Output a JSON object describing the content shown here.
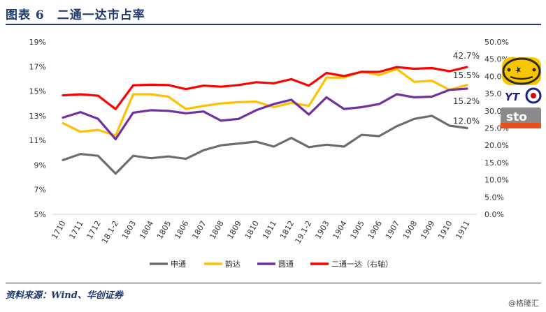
{
  "header": {
    "title": "图表 6　二通一达市占率"
  },
  "footer": {
    "source": "资料来源：Wind、华创证券",
    "watermark": "@格隆汇"
  },
  "chart_data": {
    "type": "line",
    "categories": [
      "1710",
      "1711",
      "1712",
      "18.1-2",
      "1803",
      "1804",
      "1805",
      "1806",
      "1807",
      "1808",
      "1809",
      "1810",
      "1811",
      "1812",
      "19.1-2",
      "1903",
      "1904",
      "1905",
      "1906",
      "1907",
      "1908",
      "1909",
      "1910",
      "1911"
    ],
    "y_left": {
      "ylim": [
        5,
        19
      ],
      "ticks": [
        "5%",
        "7%",
        "9%",
        "11%",
        "13%",
        "15%",
        "17%",
        "19%"
      ]
    },
    "y_right": {
      "ylim": [
        0,
        50
      ],
      "ticks": [
        "0.0%",
        "5.0%",
        "10.0%",
        "15.0%",
        "20.0%",
        "25.0%",
        "30.0%",
        "35.0%",
        "40.0%",
        "45.0%",
        "50.0%"
      ]
    },
    "series": [
      {
        "name": "申通",
        "axis": "left",
        "color": "#6d6d6d",
        "values": [
          9.4,
          9.9,
          9.75,
          8.3,
          9.75,
          9.55,
          9.7,
          9.5,
          10.2,
          10.6,
          10.75,
          10.9,
          10.5,
          11.2,
          10.45,
          10.65,
          10.5,
          11.45,
          11.35,
          12.15,
          12.75,
          13.0,
          12.2,
          12.0
        ]
      },
      {
        "name": "韵达",
        "axis": "left",
        "color": "#ffc000",
        "values": [
          12.4,
          11.7,
          11.85,
          11.4,
          14.75,
          14.75,
          14.55,
          13.55,
          13.8,
          14.0,
          14.1,
          14.15,
          13.7,
          14.05,
          13.8,
          16.1,
          16.1,
          16.6,
          16.3,
          16.8,
          15.75,
          15.85,
          15.1,
          15.5
        ]
      },
      {
        "name": "圆通",
        "axis": "left",
        "color": "#7030a0",
        "values": [
          12.85,
          13.3,
          12.75,
          11.1,
          13.25,
          13.45,
          13.4,
          13.2,
          13.35,
          12.6,
          12.75,
          13.45,
          13.95,
          14.3,
          13.1,
          14.5,
          13.55,
          13.7,
          13.95,
          14.75,
          14.5,
          14.55,
          15.1,
          15.2
        ]
      },
      {
        "name": "二通一达（右轴）",
        "axis": "right",
        "color": "#ff0000",
        "values": [
          34.5,
          34.8,
          34.4,
          30.5,
          37.4,
          37.6,
          37.5,
          36.3,
          37.3,
          37.0,
          37.5,
          38.3,
          38.0,
          39.2,
          37.3,
          41.0,
          40.1,
          41.3,
          41.3,
          42.7,
          42.2,
          42.4,
          41.5,
          42.7
        ]
      }
    ],
    "data_labels": [
      {
        "series": "二通一达（右轴）",
        "text": "42.7%"
      },
      {
        "series": "韵达",
        "text": "15.5%"
      },
      {
        "series": "圆通",
        "text": "15.2%"
      },
      {
        "series": "申通",
        "text": "12.0%"
      }
    ],
    "legend": {
      "placement": "bottom"
    },
    "grid": false
  },
  "logos": [
    {
      "name": "yunda-logo",
      "colors": [
        "#f7c600",
        "#2b2b2b"
      ]
    },
    {
      "name": "yto-logo",
      "colors": [
        "#1d2088",
        "#ffffff"
      ]
    },
    {
      "name": "sto-logo",
      "colors": [
        "#e5501c",
        "#8a8a8a"
      ]
    }
  ]
}
